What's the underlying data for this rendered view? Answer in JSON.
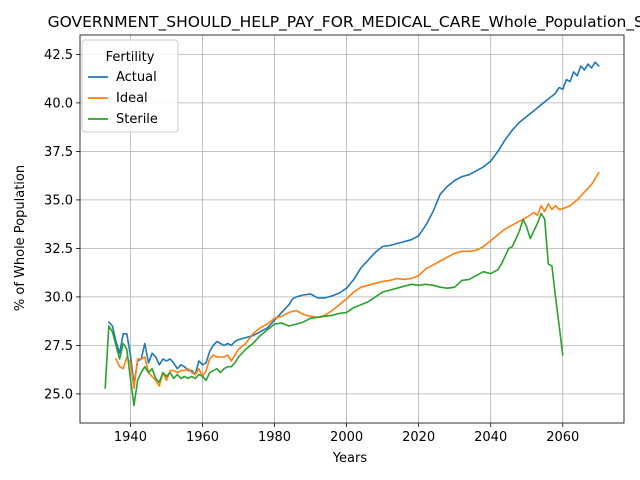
{
  "chart_data": {
    "type": "line",
    "title": "GOVERNMENT_SHOULD_HELP_PAY_FOR_MEDICAL_CARE_Whole_Population_Sc",
    "xlabel": "Years",
    "ylabel": "% of Whole Population",
    "xlim": [
      1926,
      2077
    ],
    "ylim": [
      23.5,
      43.5
    ],
    "xticks": [
      1940,
      1960,
      1980,
      2000,
      2020,
      2040,
      2060
    ],
    "yticks": [
      25.0,
      27.5,
      30.0,
      32.5,
      35.0,
      37.5,
      40.0,
      42.5
    ],
    "ytick_labels": [
      "25.0",
      "27.5",
      "30.0",
      "32.5",
      "35.0",
      "37.5",
      "40.0",
      "42.5"
    ],
    "grid": true,
    "legend_title": "Fertility",
    "legend_position": "top-left",
    "series": [
      {
        "name": "Actual",
        "color": "#1f77b4",
        "points": [
          [
            1934,
            28.7
          ],
          [
            1935,
            28.5
          ],
          [
            1936,
            27.7
          ],
          [
            1937,
            27.1
          ],
          [
            1938,
            28.1
          ],
          [
            1939,
            28.1
          ],
          [
            1940,
            27.0
          ],
          [
            1941,
            25.5
          ],
          [
            1942,
            26.7
          ],
          [
            1943,
            26.8
          ],
          [
            1944,
            27.6
          ],
          [
            1945,
            26.6
          ],
          [
            1946,
            27.1
          ],
          [
            1947,
            26.9
          ],
          [
            1948,
            26.5
          ],
          [
            1949,
            26.8
          ],
          [
            1950,
            26.7
          ],
          [
            1951,
            26.8
          ],
          [
            1952,
            26.6
          ],
          [
            1953,
            26.3
          ],
          [
            1954,
            26.5
          ],
          [
            1955,
            26.4
          ],
          [
            1956,
            26.2
          ],
          [
            1957,
            26.2
          ],
          [
            1958,
            26.0
          ],
          [
            1959,
            26.7
          ],
          [
            1960,
            26.5
          ],
          [
            1961,
            26.6
          ],
          [
            1962,
            27.2
          ],
          [
            1963,
            27.5
          ],
          [
            1964,
            27.7
          ],
          [
            1965,
            27.6
          ],
          [
            1966,
            27.5
          ],
          [
            1967,
            27.6
          ],
          [
            1968,
            27.5
          ],
          [
            1969,
            27.7
          ],
          [
            1970,
            27.8
          ],
          [
            1972,
            27.9
          ],
          [
            1974,
            28.0
          ],
          [
            1976,
            28.2
          ],
          [
            1978,
            28.4
          ],
          [
            1980,
            28.8
          ],
          [
            1982,
            29.2
          ],
          [
            1984,
            29.6
          ],
          [
            1985,
            29.9
          ],
          [
            1986,
            30.0
          ],
          [
            1988,
            30.1
          ],
          [
            1990,
            30.15
          ],
          [
            1992,
            29.95
          ],
          [
            1994,
            29.95
          ],
          [
            1996,
            30.05
          ],
          [
            1998,
            30.2
          ],
          [
            2000,
            30.45
          ],
          [
            2002,
            30.9
          ],
          [
            2004,
            31.5
          ],
          [
            2006,
            31.9
          ],
          [
            2008,
            32.3
          ],
          [
            2010,
            32.6
          ],
          [
            2012,
            32.65
          ],
          [
            2014,
            32.75
          ],
          [
            2016,
            32.85
          ],
          [
            2018,
            32.95
          ],
          [
            2020,
            33.15
          ],
          [
            2022,
            33.7
          ],
          [
            2024,
            34.4
          ],
          [
            2026,
            35.3
          ],
          [
            2028,
            35.7
          ],
          [
            2030,
            36.0
          ],
          [
            2032,
            36.2
          ],
          [
            2034,
            36.3
          ],
          [
            2036,
            36.5
          ],
          [
            2038,
            36.7
          ],
          [
            2040,
            37.0
          ],
          [
            2042,
            37.5
          ],
          [
            2044,
            38.1
          ],
          [
            2046,
            38.6
          ],
          [
            2048,
            39.0
          ],
          [
            2050,
            39.3
          ],
          [
            2052,
            39.6
          ],
          [
            2054,
            39.9
          ],
          [
            2056,
            40.2
          ],
          [
            2058,
            40.5
          ],
          [
            2059,
            40.8
          ],
          [
            2060,
            40.7
          ],
          [
            2061,
            41.2
          ],
          [
            2062,
            41.1
          ],
          [
            2063,
            41.6
          ],
          [
            2064,
            41.4
          ],
          [
            2065,
            41.9
          ],
          [
            2066,
            41.7
          ],
          [
            2067,
            42.0
          ],
          [
            2068,
            41.8
          ],
          [
            2069,
            42.1
          ],
          [
            2070,
            41.9
          ]
        ]
      },
      {
        "name": "Ideal",
        "color": "#ff7f0e",
        "points": [
          [
            1936,
            26.8
          ],
          [
            1937,
            26.4
          ],
          [
            1938,
            26.3
          ],
          [
            1939,
            26.9
          ],
          [
            1940,
            26.6
          ],
          [
            1941,
            25.3
          ],
          [
            1942,
            26.8
          ],
          [
            1943,
            26.8
          ],
          [
            1944,
            26.9
          ],
          [
            1945,
            26.1
          ],
          [
            1946,
            25.9
          ],
          [
            1947,
            25.7
          ],
          [
            1948,
            25.4
          ],
          [
            1949,
            26.1
          ],
          [
            1950,
            25.7
          ],
          [
            1951,
            26.2
          ],
          [
            1952,
            26.2
          ],
          [
            1953,
            26.1
          ],
          [
            1954,
            26.2
          ],
          [
            1955,
            26.2
          ],
          [
            1956,
            26.3
          ],
          [
            1957,
            26.1
          ],
          [
            1958,
            26.0
          ],
          [
            1959,
            26.3
          ],
          [
            1960,
            25.9
          ],
          [
            1961,
            26.2
          ],
          [
            1962,
            26.8
          ],
          [
            1963,
            27.0
          ],
          [
            1964,
            26.9
          ],
          [
            1965,
            26.9
          ],
          [
            1966,
            26.9
          ],
          [
            1967,
            27.0
          ],
          [
            1968,
            26.7
          ],
          [
            1969,
            27.0
          ],
          [
            1970,
            27.3
          ],
          [
            1972,
            27.6
          ],
          [
            1974,
            28.1
          ],
          [
            1976,
            28.4
          ],
          [
            1978,
            28.6
          ],
          [
            1980,
            28.9
          ],
          [
            1982,
            29.0
          ],
          [
            1984,
            29.2
          ],
          [
            1986,
            29.3
          ],
          [
            1988,
            29.1
          ],
          [
            1990,
            29.0
          ],
          [
            1992,
            28.95
          ],
          [
            1994,
            29.05
          ],
          [
            1996,
            29.3
          ],
          [
            1998,
            29.6
          ],
          [
            2000,
            29.9
          ],
          [
            2002,
            30.25
          ],
          [
            2004,
            30.5
          ],
          [
            2006,
            30.6
          ],
          [
            2008,
            30.7
          ],
          [
            2010,
            30.8
          ],
          [
            2012,
            30.85
          ],
          [
            2014,
            30.95
          ],
          [
            2016,
            30.9
          ],
          [
            2018,
            30.95
          ],
          [
            2020,
            31.1
          ],
          [
            2022,
            31.45
          ],
          [
            2024,
            31.65
          ],
          [
            2026,
            31.85
          ],
          [
            2028,
            32.05
          ],
          [
            2030,
            32.25
          ],
          [
            2032,
            32.35
          ],
          [
            2034,
            32.35
          ],
          [
            2036,
            32.4
          ],
          [
            2038,
            32.6
          ],
          [
            2040,
            32.9
          ],
          [
            2042,
            33.2
          ],
          [
            2044,
            33.5
          ],
          [
            2046,
            33.7
          ],
          [
            2048,
            33.9
          ],
          [
            2050,
            34.1
          ],
          [
            2052,
            34.35
          ],
          [
            2053,
            34.2
          ],
          [
            2054,
            34.7
          ],
          [
            2055,
            34.4
          ],
          [
            2056,
            34.8
          ],
          [
            2057,
            34.5
          ],
          [
            2058,
            34.7
          ],
          [
            2059,
            34.5
          ],
          [
            2060,
            34.55
          ],
          [
            2062,
            34.7
          ],
          [
            2064,
            35.0
          ],
          [
            2066,
            35.4
          ],
          [
            2068,
            35.8
          ],
          [
            2069,
            36.1
          ],
          [
            2070,
            36.4
          ]
        ]
      },
      {
        "name": "Sterile",
        "color": "#2ca02c",
        "points": [
          [
            1933,
            25.3
          ],
          [
            1934,
            28.5
          ],
          [
            1935,
            28.2
          ],
          [
            1936,
            27.5
          ],
          [
            1937,
            26.8
          ],
          [
            1938,
            27.6
          ],
          [
            1939,
            27.3
          ],
          [
            1940,
            25.8
          ],
          [
            1941,
            24.4
          ],
          [
            1942,
            25.7
          ],
          [
            1943,
            26.1
          ],
          [
            1944,
            26.4
          ],
          [
            1945,
            26.1
          ],
          [
            1946,
            26.3
          ],
          [
            1947,
            25.8
          ],
          [
            1948,
            25.6
          ],
          [
            1949,
            26.1
          ],
          [
            1950,
            25.9
          ],
          [
            1951,
            26.1
          ],
          [
            1952,
            25.8
          ],
          [
            1953,
            26.0
          ],
          [
            1954,
            25.8
          ],
          [
            1955,
            25.9
          ],
          [
            1956,
            25.8
          ],
          [
            1957,
            25.9
          ],
          [
            1958,
            25.8
          ],
          [
            1959,
            26.0
          ],
          [
            1960,
            25.9
          ],
          [
            1961,
            25.7
          ],
          [
            1962,
            26.1
          ],
          [
            1963,
            26.2
          ],
          [
            1964,
            26.3
          ],
          [
            1965,
            26.1
          ],
          [
            1966,
            26.3
          ],
          [
            1967,
            26.4
          ],
          [
            1968,
            26.4
          ],
          [
            1969,
            26.6
          ],
          [
            1970,
            26.9
          ],
          [
            1972,
            27.3
          ],
          [
            1974,
            27.6
          ],
          [
            1976,
            28.0
          ],
          [
            1978,
            28.3
          ],
          [
            1980,
            28.6
          ],
          [
            1982,
            28.65
          ],
          [
            1984,
            28.5
          ],
          [
            1986,
            28.6
          ],
          [
            1988,
            28.7
          ],
          [
            1990,
            28.9
          ],
          [
            1992,
            28.95
          ],
          [
            1994,
            29.0
          ],
          [
            1996,
            29.05
          ],
          [
            1998,
            29.15
          ],
          [
            2000,
            29.2
          ],
          [
            2002,
            29.45
          ],
          [
            2004,
            29.6
          ],
          [
            2006,
            29.75
          ],
          [
            2008,
            30.0
          ],
          [
            2010,
            30.25
          ],
          [
            2012,
            30.35
          ],
          [
            2014,
            30.45
          ],
          [
            2016,
            30.55
          ],
          [
            2018,
            30.65
          ],
          [
            2020,
            30.6
          ],
          [
            2022,
            30.65
          ],
          [
            2024,
            30.6
          ],
          [
            2026,
            30.5
          ],
          [
            2028,
            30.45
          ],
          [
            2030,
            30.5
          ],
          [
            2032,
            30.85
          ],
          [
            2034,
            30.9
          ],
          [
            2036,
            31.1
          ],
          [
            2038,
            31.3
          ],
          [
            2040,
            31.2
          ],
          [
            2042,
            31.4
          ],
          [
            2043,
            31.7
          ],
          [
            2044,
            32.1
          ],
          [
            2045,
            32.5
          ],
          [
            2046,
            32.6
          ],
          [
            2047,
            33.0
          ],
          [
            2048,
            33.4
          ],
          [
            2049,
            34.0
          ],
          [
            2050,
            33.6
          ],
          [
            2051,
            33.0
          ],
          [
            2052,
            33.4
          ],
          [
            2053,
            33.8
          ],
          [
            2054,
            34.3
          ],
          [
            2055,
            34.0
          ],
          [
            2056,
            31.7
          ],
          [
            2057,
            31.6
          ],
          [
            2058,
            30.0
          ],
          [
            2059,
            28.5
          ],
          [
            2060,
            27.0
          ]
        ]
      }
    ]
  }
}
